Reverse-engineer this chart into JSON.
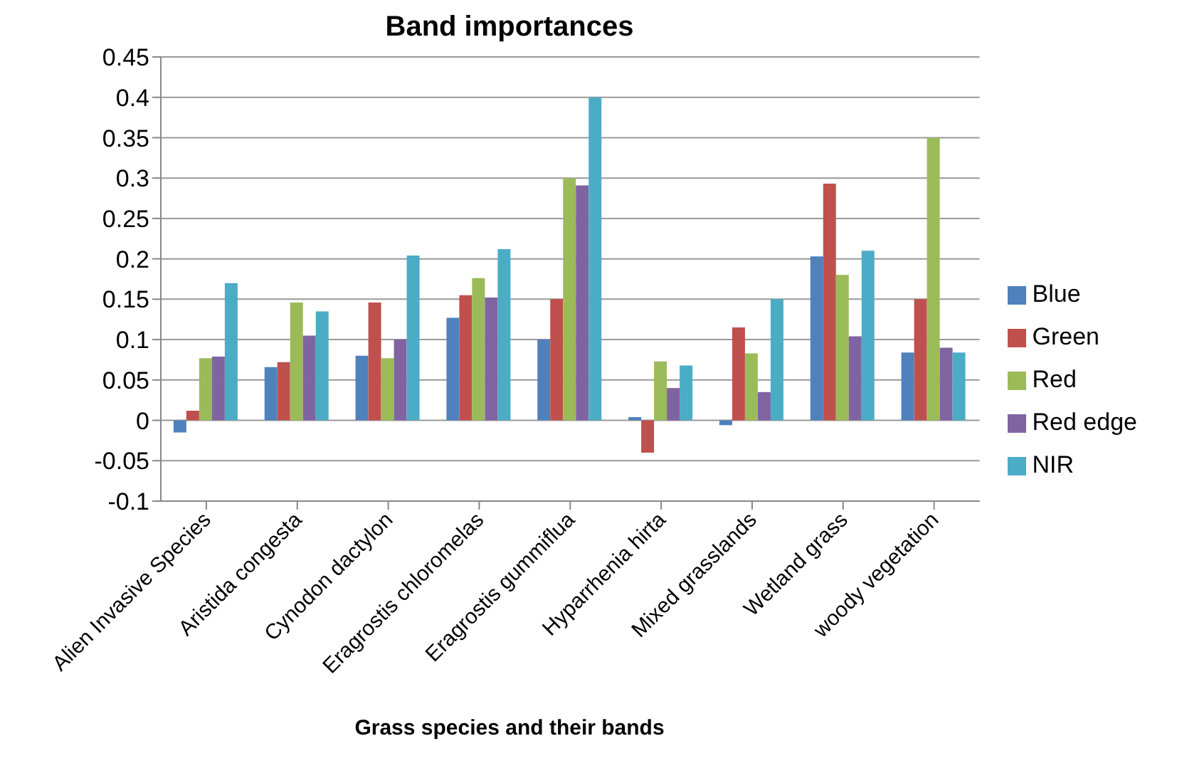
{
  "chart_data": {
    "type": "bar",
    "title": "Band importances",
    "xlabel": "Grass species and their bands",
    "categories": [
      "Alien Invasive Species",
      "Aristida congesta",
      "Cynodon dactylon",
      "Eragrostis chloromelas",
      "Eragrostis gummiflua",
      "Hyparrhenia hirta",
      "Mixed grasslands",
      "Wetland grass",
      "woody vegetation"
    ],
    "series": [
      {
        "name": "Blue",
        "color": "#4f81bd",
        "values": [
          -0.015,
          0.066,
          0.08,
          0.127,
          0.1,
          0.004,
          -0.006,
          0.203,
          0.084
        ]
      },
      {
        "name": "Green",
        "color": "#c0504d",
        "values": [
          0.012,
          0.072,
          0.146,
          0.155,
          0.15,
          -0.04,
          0.115,
          0.293,
          0.15
        ]
      },
      {
        "name": "Red",
        "color": "#9bbb59",
        "values": [
          0.077,
          0.146,
          0.077,
          0.176,
          0.3,
          0.073,
          0.083,
          0.18,
          0.35
        ]
      },
      {
        "name": "Red edge",
        "color": "#8064a2",
        "values": [
          0.079,
          0.105,
          0.1,
          0.152,
          0.291,
          0.04,
          0.035,
          0.104,
          0.09
        ]
      },
      {
        "name": "NIR",
        "color": "#4bacc6",
        "values": [
          0.17,
          0.135,
          0.204,
          0.212,
          0.4,
          0.068,
          0.15,
          0.21,
          0.084
        ]
      }
    ],
    "ylim": [
      -0.1,
      0.45
    ],
    "yticks": [
      -0.1,
      -0.05,
      0,
      0.05,
      0.1,
      0.15,
      0.2,
      0.25,
      0.3,
      0.35,
      0.4,
      0.45
    ],
    "grid": "y",
    "legend": "right"
  }
}
